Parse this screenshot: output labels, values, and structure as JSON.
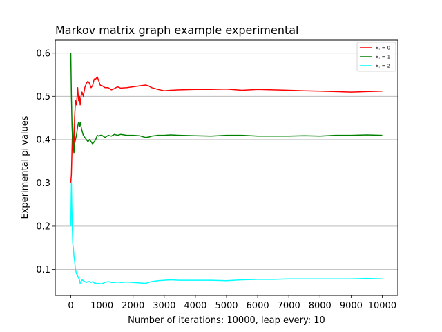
{
  "chart_data": {
    "type": "line",
    "title": "Markov matrix graph example experimental",
    "xlabel": "Number of iterations: 10000, leap every: 10",
    "ylabel": "Experimental pi values",
    "xlim": [
      -500,
      10500
    ],
    "ylim": [
      0.04,
      0.63
    ],
    "xticks": [
      0,
      1000,
      2000,
      3000,
      4000,
      5000,
      6000,
      7000,
      8000,
      9000,
      10000
    ],
    "xtick_labels": [
      "0",
      "1000",
      "2000",
      "3000",
      "4000",
      "5000",
      "6000",
      "7000",
      "8000",
      "9000",
      "10000"
    ],
    "yticks": [
      0.1,
      0.2,
      0.3,
      0.4,
      0.5,
      0.6
    ],
    "ytick_labels": [
      "0.1",
      "0.2",
      "0.3",
      "0.4",
      "0.5",
      "0.6"
    ],
    "grid": "horizontal",
    "legend_position": "top-right",
    "series": [
      {
        "name": "x. = 0",
        "color": "#ff0000",
        "x": [
          0,
          20,
          40,
          60,
          80,
          100,
          120,
          150,
          180,
          200,
          220,
          250,
          280,
          300,
          330,
          360,
          400,
          450,
          500,
          550,
          600,
          650,
          700,
          750,
          800,
          850,
          900,
          950,
          1000,
          1100,
          1200,
          1300,
          1400,
          1500,
          1600,
          1800,
          2000,
          2200,
          2400,
          2500,
          2600,
          2800,
          3000,
          3200,
          3500,
          4000,
          4500,
          5000,
          5500,
          6000,
          6500,
          7000,
          7500,
          8000,
          8500,
          9000,
          9500,
          10000
        ],
        "y": [
          0.3,
          0.32,
          0.38,
          0.44,
          0.4,
          0.37,
          0.45,
          0.49,
          0.48,
          0.5,
          0.52,
          0.49,
          0.5,
          0.48,
          0.5,
          0.51,
          0.5,
          0.52,
          0.53,
          0.535,
          0.53,
          0.52,
          0.525,
          0.54,
          0.54,
          0.545,
          0.535,
          0.525,
          0.525,
          0.52,
          0.52,
          0.515,
          0.518,
          0.522,
          0.519,
          0.52,
          0.522,
          0.524,
          0.526,
          0.524,
          0.52,
          0.516,
          0.513,
          0.514,
          0.515,
          0.516,
          0.516,
          0.517,
          0.514,
          0.516,
          0.515,
          0.514,
          0.513,
          0.512,
          0.511,
          0.51,
          0.511,
          0.512
        ]
      },
      {
        "name": "x. = 1",
        "color": "#008000",
        "x": [
          0,
          20,
          40,
          60,
          80,
          100,
          120,
          150,
          180,
          200,
          220,
          250,
          280,
          300,
          330,
          360,
          400,
          450,
          500,
          550,
          600,
          650,
          700,
          750,
          800,
          850,
          900,
          950,
          1000,
          1100,
          1200,
          1300,
          1400,
          1500,
          1600,
          1800,
          2000,
          2200,
          2400,
          2500,
          2600,
          2800,
          3000,
          3200,
          3500,
          4000,
          4500,
          5000,
          5500,
          6000,
          6500,
          7000,
          7500,
          8000,
          8500,
          9000,
          9500,
          10000
        ],
        "y": [
          0.6,
          0.5,
          0.43,
          0.39,
          0.38,
          0.37,
          0.39,
          0.4,
          0.41,
          0.42,
          0.43,
          0.44,
          0.43,
          0.44,
          0.43,
          0.42,
          0.41,
          0.405,
          0.4,
          0.395,
          0.4,
          0.395,
          0.39,
          0.395,
          0.4,
          0.41,
          0.408,
          0.41,
          0.41,
          0.405,
          0.41,
          0.408,
          0.412,
          0.41,
          0.412,
          0.41,
          0.41,
          0.409,
          0.405,
          0.406,
          0.408,
          0.41,
          0.41,
          0.411,
          0.41,
          0.409,
          0.408,
          0.41,
          0.41,
          0.408,
          0.408,
          0.408,
          0.409,
          0.408,
          0.41,
          0.41,
          0.411,
          0.41
        ]
      },
      {
        "name": "x. = 2",
        "color": "#00ffff",
        "x": [
          0,
          20,
          40,
          60,
          80,
          100,
          120,
          150,
          180,
          200,
          220,
          250,
          280,
          300,
          330,
          360,
          400,
          450,
          500,
          550,
          600,
          650,
          700,
          750,
          800,
          850,
          900,
          950,
          1000,
          1100,
          1200,
          1300,
          1400,
          1500,
          1600,
          1800,
          2000,
          2200,
          2400,
          2500,
          2600,
          2800,
          3000,
          3200,
          3500,
          4000,
          4500,
          5000,
          5500,
          6000,
          6500,
          7000,
          7500,
          8000,
          8500,
          9000,
          9500,
          10000
        ],
        "y": [
          0.2,
          0.3,
          0.22,
          0.16,
          0.15,
          0.13,
          0.12,
          0.1,
          0.09,
          0.09,
          0.085,
          0.08,
          0.075,
          0.068,
          0.072,
          0.076,
          0.074,
          0.072,
          0.07,
          0.072,
          0.072,
          0.07,
          0.072,
          0.069,
          0.068,
          0.067,
          0.068,
          0.067,
          0.067,
          0.07,
          0.072,
          0.07,
          0.07,
          0.071,
          0.07,
          0.071,
          0.07,
          0.069,
          0.068,
          0.07,
          0.072,
          0.074,
          0.075,
          0.076,
          0.075,
          0.075,
          0.075,
          0.074,
          0.076,
          0.077,
          0.077,
          0.078,
          0.078,
          0.078,
          0.078,
          0.078,
          0.079,
          0.078
        ]
      }
    ]
  }
}
